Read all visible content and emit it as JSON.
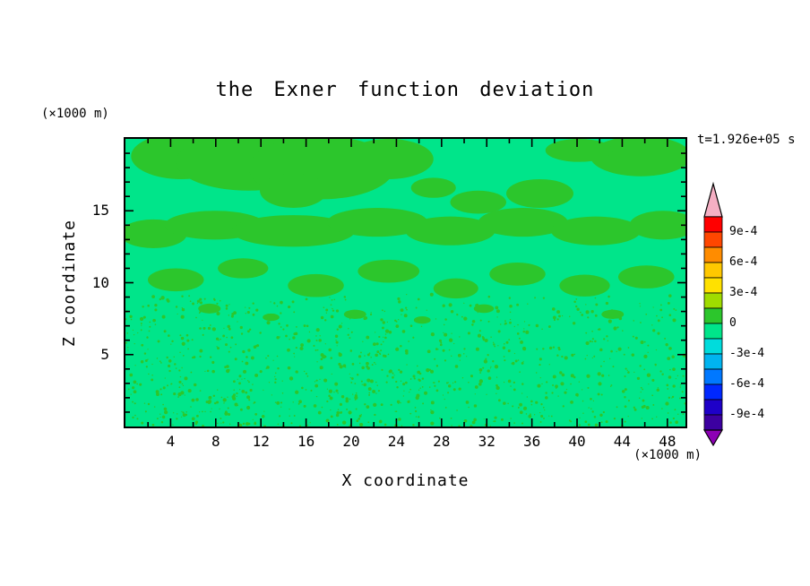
{
  "chart_data": {
    "type": "contour",
    "title": "the Exner function deviation",
    "time_label": "t=1.926e+05 s",
    "xlabel": "X coordinate",
    "ylabel": "Z coordinate",
    "x_unit_label": "(×1000 m)",
    "y_unit_label": "(×1000 m)",
    "xlim": [
      0,
      49.6
    ],
    "ylim": [
      0,
      20
    ],
    "x_major_ticks": [
      4,
      8,
      12,
      16,
      20,
      24,
      28,
      32,
      36,
      40,
      44,
      48
    ],
    "x_minor_step": 2,
    "y_major_ticks": [
      5,
      10,
      15
    ],
    "y_minor_step": 1,
    "colorbar": {
      "labels": [
        "9e-4",
        "6e-4",
        "3e-4",
        "0",
        "-3e-4",
        "-6e-4",
        "-9e-4"
      ],
      "label_boundaries": [
        1,
        3,
        5,
        7,
        9,
        11,
        13
      ],
      "band_colors_top_to_bottom": [
        "#FF0000",
        "#FF4600",
        "#FF8C00",
        "#FFC800",
        "#FFE100",
        "#A0DC00",
        "#2CC62C",
        "#00E58A",
        "#00DCDC",
        "#00B4F0",
        "#0078FF",
        "#0028FF",
        "#1E00C8",
        "#3C00A0"
      ],
      "over_arrow_color": "#F5AFC3",
      "under_arrow_color": "#8C00B4"
    },
    "field": {
      "background_color": "#00E58A",
      "blob_color": "#2CC62C",
      "blobs": [
        {
          "cx": 0.1,
          "cy": 0.06,
          "rx": 0.09,
          "ry": 0.08
        },
        {
          "cx": 0.22,
          "cy": 0.08,
          "rx": 0.13,
          "ry": 0.1
        },
        {
          "cx": 0.35,
          "cy": 0.1,
          "rx": 0.13,
          "ry": 0.11
        },
        {
          "cx": 0.47,
          "cy": 0.07,
          "rx": 0.08,
          "ry": 0.07
        },
        {
          "cx": 0.3,
          "cy": 0.18,
          "rx": 0.06,
          "ry": 0.06
        },
        {
          "cx": 0.92,
          "cy": 0.06,
          "rx": 0.09,
          "ry": 0.07
        },
        {
          "cx": 0.81,
          "cy": 0.04,
          "rx": 0.06,
          "ry": 0.04
        },
        {
          "cx": 0.74,
          "cy": 0.19,
          "rx": 0.06,
          "ry": 0.05
        },
        {
          "cx": 0.63,
          "cy": 0.22,
          "rx": 0.05,
          "ry": 0.04
        },
        {
          "cx": 0.55,
          "cy": 0.17,
          "rx": 0.04,
          "ry": 0.035
        },
        {
          "cx": 0.05,
          "cy": 0.33,
          "rx": 0.06,
          "ry": 0.05
        },
        {
          "cx": 0.16,
          "cy": 0.3,
          "rx": 0.09,
          "ry": 0.05
        },
        {
          "cx": 0.3,
          "cy": 0.32,
          "rx": 0.11,
          "ry": 0.055
        },
        {
          "cx": 0.45,
          "cy": 0.29,
          "rx": 0.09,
          "ry": 0.05
        },
        {
          "cx": 0.58,
          "cy": 0.32,
          "rx": 0.08,
          "ry": 0.05
        },
        {
          "cx": 0.71,
          "cy": 0.29,
          "rx": 0.08,
          "ry": 0.05
        },
        {
          "cx": 0.84,
          "cy": 0.32,
          "rx": 0.08,
          "ry": 0.05
        },
        {
          "cx": 0.96,
          "cy": 0.3,
          "rx": 0.06,
          "ry": 0.05
        },
        {
          "cx": 0.09,
          "cy": 0.49,
          "rx": 0.05,
          "ry": 0.04
        },
        {
          "cx": 0.21,
          "cy": 0.45,
          "rx": 0.045,
          "ry": 0.035
        },
        {
          "cx": 0.34,
          "cy": 0.51,
          "rx": 0.05,
          "ry": 0.04
        },
        {
          "cx": 0.47,
          "cy": 0.46,
          "rx": 0.055,
          "ry": 0.04
        },
        {
          "cx": 0.59,
          "cy": 0.52,
          "rx": 0.04,
          "ry": 0.035
        },
        {
          "cx": 0.7,
          "cy": 0.47,
          "rx": 0.05,
          "ry": 0.04
        },
        {
          "cx": 0.82,
          "cy": 0.51,
          "rx": 0.045,
          "ry": 0.038
        },
        {
          "cx": 0.93,
          "cy": 0.48,
          "rx": 0.05,
          "ry": 0.04
        },
        {
          "cx": 0.15,
          "cy": 0.59,
          "rx": 0.02,
          "ry": 0.017
        },
        {
          "cx": 0.41,
          "cy": 0.61,
          "rx": 0.02,
          "ry": 0.016
        },
        {
          "cx": 0.64,
          "cy": 0.59,
          "rx": 0.018,
          "ry": 0.015
        },
        {
          "cx": 0.87,
          "cy": 0.61,
          "rx": 0.02,
          "ry": 0.016
        },
        {
          "cx": 0.26,
          "cy": 0.62,
          "rx": 0.015,
          "ry": 0.013
        },
        {
          "cx": 0.53,
          "cy": 0.63,
          "rx": 0.015,
          "ry": 0.013
        }
      ],
      "speckle": {
        "seed": 1337,
        "count": 1100,
        "y_start": 0.54,
        "bias_exp": 0.85,
        "r_min": 0.6,
        "r_max": 2.2
      }
    }
  }
}
